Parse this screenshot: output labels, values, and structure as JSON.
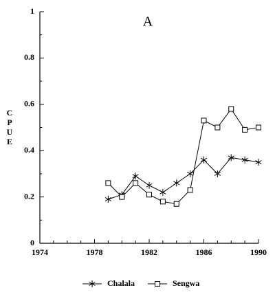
{
  "chart_data": {
    "type": "line",
    "title": "A",
    "y_label": "CPUE",
    "x": [
      1979,
      1980,
      1981,
      1982,
      1983,
      1984,
      1985,
      1986,
      1987,
      1988,
      1989,
      1990
    ],
    "series": [
      {
        "name": "Chalala",
        "color": "#000000",
        "marker": "asterisk",
        "values": [
          0.19,
          0.21,
          0.29,
          0.25,
          0.22,
          0.26,
          0.3,
          0.36,
          0.3,
          0.37,
          0.36,
          0.35
        ]
      },
      {
        "name": "Sengwa",
        "color": "#000000",
        "marker": "square",
        "values": [
          0.26,
          0.2,
          0.26,
          0.21,
          0.18,
          0.17,
          0.23,
          0.53,
          0.5,
          0.58,
          0.49,
          0.5
        ]
      }
    ],
    "xlim": [
      1974,
      1990
    ],
    "xticks": [
      1974,
      1978,
      1982,
      1986,
      1990
    ],
    "ylim": [
      0,
      1
    ],
    "yticks": [
      0,
      0.2,
      0.4,
      0.6,
      0.8,
      1
    ],
    "legend": "bottom"
  }
}
